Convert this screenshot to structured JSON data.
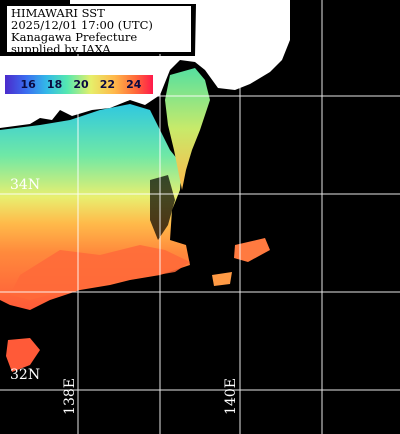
{
  "info": {
    "line1": "HIMAWARI SST",
    "line2": "2025/12/01 17:00 (UTC)",
    "line3": "Kanagawa Prefecture",
    "line4": "supplied by JAXA"
  },
  "legend": {
    "ticks": [
      "16",
      "18",
      "20",
      "22",
      "24"
    ],
    "colors": [
      "#4b2acb",
      "#3b6cf0",
      "#33b8e8",
      "#55e8b0",
      "#e6ef6a",
      "#ffb84a",
      "#ff6a3a",
      "#ff1a4a"
    ]
  },
  "grid": {
    "lat_labels": [
      "34N",
      "32N"
    ],
    "lon_labels": [
      "138E",
      "140E"
    ]
  },
  "colors": {
    "land": "#ffffff",
    "no_data": "#000000",
    "grid": "#ffffff"
  }
}
